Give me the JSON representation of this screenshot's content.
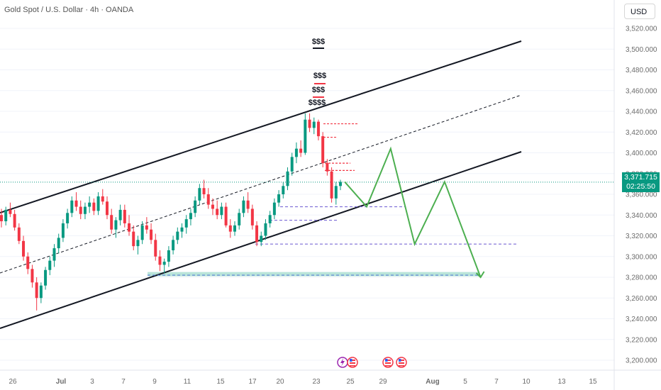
{
  "header": {
    "title": "Gold Spot / U.S. Dollar · 4h · OANDA",
    "currency_label": "USD"
  },
  "last_price": {
    "value": "3,371.715",
    "countdown": "02:25:50",
    "color": "#089981"
  },
  "colors": {
    "up": "#089981",
    "down": "#f23645",
    "projection": "#4caf50",
    "channel": "#131722",
    "level": "#7b6bd6",
    "zone": "#9bd8c9"
  },
  "chart_data": {
    "type": "candlestick",
    "title": "",
    "ylim": [
      3195,
      3530
    ],
    "y_ticks": [
      "3,200.000",
      "3,220.000",
      "3,240.000",
      "3,260.000",
      "3,280.000",
      "3,300.000",
      "3,320.000",
      "3,340.000",
      "3,360.000",
      "3,380.000",
      "3,400.000",
      "3,420.000",
      "3,440.000",
      "3,460.000",
      "3,480.000",
      "3,500.000",
      "3,520.000"
    ],
    "x_ticks": [
      "26",
      "Jul",
      "3",
      "7",
      "9",
      "11",
      "15",
      "17",
      "20",
      "23",
      "25",
      "29",
      "Aug",
      "5",
      "7",
      "10",
      "13",
      "15"
    ],
    "ohlc_start": "2025-06-24",
    "ohlc": [
      [
        3340,
        3346,
        3328,
        3334
      ],
      [
        3334,
        3348,
        3330,
        3345
      ],
      [
        3345,
        3352,
        3338,
        3341
      ],
      [
        3341,
        3345,
        3325,
        3328
      ],
      [
        3328,
        3332,
        3312,
        3315
      ],
      [
        3315,
        3320,
        3296,
        3300
      ],
      [
        3300,
        3304,
        3283,
        3288
      ],
      [
        3288,
        3292,
        3270,
        3275
      ],
      [
        3275,
        3280,
        3248,
        3260
      ],
      [
        3260,
        3275,
        3255,
        3272
      ],
      [
        3272,
        3290,
        3268,
        3287
      ],
      [
        3287,
        3300,
        3282,
        3296
      ],
      [
        3296,
        3312,
        3290,
        3308
      ],
      [
        3308,
        3322,
        3303,
        3318
      ],
      [
        3318,
        3336,
        3314,
        3332
      ],
      [
        3332,
        3346,
        3327,
        3342
      ],
      [
        3342,
        3358,
        3338,
        3354
      ],
      [
        3354,
        3362,
        3344,
        3348
      ],
      [
        3348,
        3354,
        3336,
        3341
      ],
      [
        3341,
        3352,
        3336,
        3348
      ],
      [
        3348,
        3358,
        3342,
        3352
      ],
      [
        3352,
        3356,
        3340,
        3344
      ],
      [
        3344,
        3362,
        3340,
        3358
      ],
      [
        3358,
        3365,
        3350,
        3353
      ],
      [
        3353,
        3358,
        3336,
        3340
      ],
      [
        3340,
        3346,
        3322,
        3326
      ],
      [
        3326,
        3338,
        3318,
        3335
      ],
      [
        3335,
        3350,
        3330,
        3345
      ],
      [
        3345,
        3350,
        3328,
        3332
      ],
      [
        3332,
        3340,
        3320,
        3324
      ],
      [
        3324,
        3330,
        3306,
        3310
      ],
      [
        3310,
        3320,
        3302,
        3316
      ],
      [
        3316,
        3334,
        3312,
        3330
      ],
      [
        3330,
        3338,
        3322,
        3326
      ],
      [
        3326,
        3332,
        3312,
        3316
      ],
      [
        3316,
        3322,
        3296,
        3300
      ],
      [
        3300,
        3306,
        3286,
        3292
      ],
      [
        3292,
        3298,
        3284,
        3295
      ],
      [
        3295,
        3310,
        3290,
        3306
      ],
      [
        3306,
        3320,
        3302,
        3316
      ],
      [
        3316,
        3328,
        3312,
        3324
      ],
      [
        3324,
        3332,
        3318,
        3328
      ],
      [
        3328,
        3340,
        3322,
        3336
      ],
      [
        3336,
        3346,
        3330,
        3342
      ],
      [
        3342,
        3358,
        3338,
        3354
      ],
      [
        3354,
        3370,
        3350,
        3366
      ],
      [
        3366,
        3374,
        3356,
        3360
      ],
      [
        3360,
        3366,
        3346,
        3350
      ],
      [
        3350,
        3356,
        3340,
        3346
      ],
      [
        3346,
        3354,
        3336,
        3340
      ],
      [
        3340,
        3352,
        3336,
        3348
      ],
      [
        3348,
        3352,
        3328,
        3330
      ],
      [
        3330,
        3336,
        3318,
        3324
      ],
      [
        3324,
        3334,
        3320,
        3330
      ],
      [
        3330,
        3346,
        3326,
        3342
      ],
      [
        3342,
        3358,
        3338,
        3354
      ],
      [
        3354,
        3362,
        3342,
        3346
      ],
      [
        3346,
        3350,
        3326,
        3330
      ],
      [
        3330,
        3334,
        3310,
        3314
      ],
      [
        3314,
        3324,
        3310,
        3320
      ],
      [
        3320,
        3336,
        3316,
        3332
      ],
      [
        3332,
        3344,
        3328,
        3340
      ],
      [
        3340,
        3356,
        3336,
        3352
      ],
      [
        3352,
        3364,
        3348,
        3360
      ],
      [
        3360,
        3372,
        3356,
        3368
      ],
      [
        3368,
        3386,
        3364,
        3382
      ],
      [
        3382,
        3400,
        3378,
        3396
      ],
      [
        3396,
        3410,
        3390,
        3404
      ],
      [
        3404,
        3412,
        3396,
        3400
      ],
      [
        3400,
        3438,
        3398,
        3432
      ],
      [
        3432,
        3438,
        3420,
        3424
      ],
      [
        3424,
        3434,
        3418,
        3430
      ],
      [
        3430,
        3432,
        3412,
        3416
      ],
      [
        3416,
        3420,
        3386,
        3390
      ],
      [
        3390,
        3394,
        3378,
        3382
      ],
      [
        3382,
        3386,
        3352,
        3356
      ],
      [
        3356,
        3372,
        3350,
        3368
      ],
      [
        3368,
        3374,
        3364,
        3372
      ]
    ],
    "annotations": [
      "$$$",
      "$$$",
      "$$$",
      "$$$$"
    ],
    "projection_path": [
      [
        "2025-07-24T16:00",
        3372
      ],
      [
        "2025-07-26T12:00",
        3348
      ],
      [
        "2025-07-28T12:00",
        3404
      ],
      [
        "2025-07-30T12:00",
        3312
      ],
      [
        "2025-08-02T00:00",
        3372
      ],
      [
        "2025-08-05T00:00",
        3280
      ]
    ],
    "levels": [
      3348,
      3335,
      3312,
      3282
    ]
  }
}
